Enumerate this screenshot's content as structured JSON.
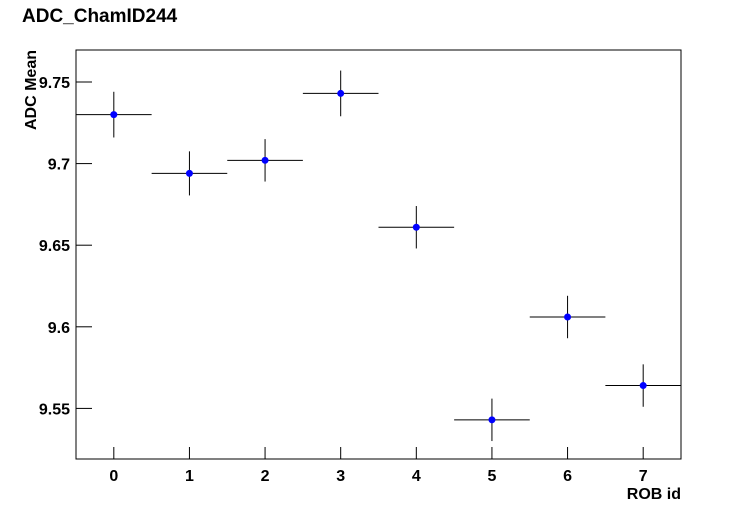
{
  "chart_data": {
    "type": "scatter",
    "title": "ADC_ChamID244",
    "x_label": "ROB id",
    "y_label": "ADC Mean",
    "x": [
      0,
      1,
      2,
      3,
      4,
      5,
      6,
      7
    ],
    "values": [
      9.73,
      9.694,
      9.702,
      9.743,
      9.661,
      9.543,
      9.606,
      9.564
    ],
    "yerr": [
      0.014,
      0.0135,
      0.013,
      0.014,
      0.013,
      0.013,
      0.013,
      0.013
    ],
    "xerr": [
      0.5,
      0.5,
      0.5,
      0.5,
      0.5,
      0.5,
      0.5,
      0.5
    ],
    "color": "#0000ff",
    "xlim": [
      -0.5,
      7.5
    ],
    "xticks": [
      0,
      1,
      2,
      3,
      4,
      5,
      6,
      7
    ],
    "ylim": [
      9.519,
      9.7696
    ],
    "yticks": [
      9.55,
      9.6,
      9.65,
      9.7,
      9.75
    ]
  }
}
